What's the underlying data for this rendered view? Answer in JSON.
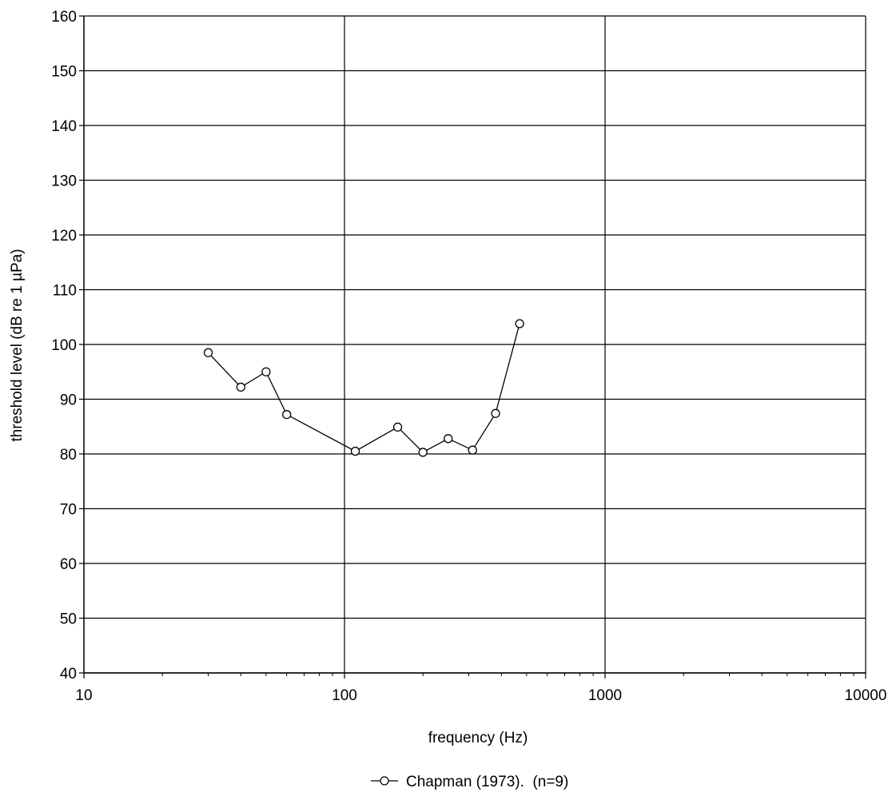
{
  "chart_data": {
    "type": "line",
    "title": "",
    "xlabel": "frequency (Hz)",
    "ylabel": "threshold level (dB re 1 µPa)",
    "x_scale": "log",
    "xlim": [
      10,
      10000
    ],
    "ylim": [
      40,
      160
    ],
    "x_ticks": [
      "10",
      "100",
      "1000",
      "10000"
    ],
    "y_ticks": [
      "40",
      "50",
      "60",
      "70",
      "80",
      "90",
      "100",
      "110",
      "120",
      "130",
      "140",
      "150",
      "160"
    ],
    "grid": true,
    "legend_position": "bottom",
    "series": [
      {
        "name": "Chapman (1973).  (n=9)",
        "marker": "open-circle",
        "color": "#000000",
        "x": [
          30,
          40,
          50,
          60,
          110,
          160,
          200,
          250,
          310,
          380,
          470
        ],
        "y": [
          98.5,
          92.2,
          95,
          87.2,
          80.5,
          84.9,
          80.3,
          82.8,
          80.7,
          87.4,
          103.8
        ]
      }
    ]
  }
}
